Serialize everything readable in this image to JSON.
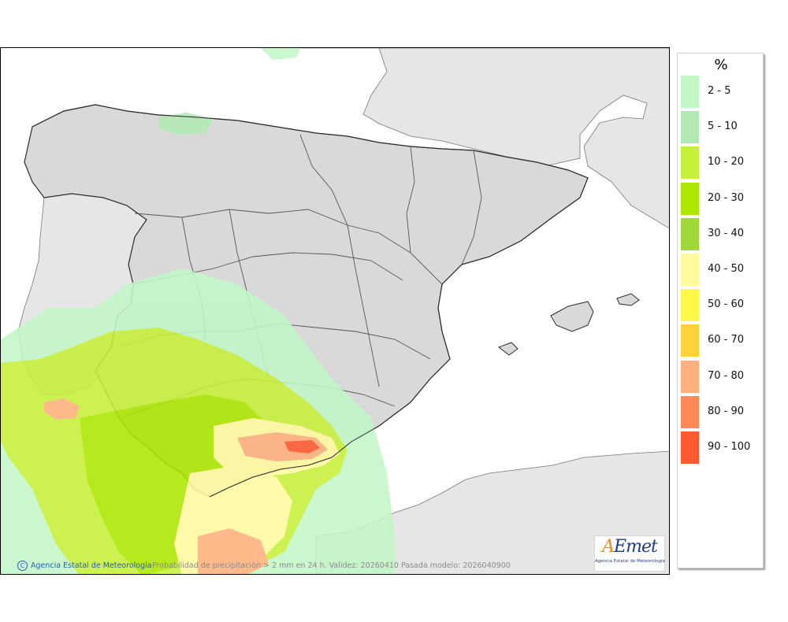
{
  "legend": {
    "unit": "%",
    "items": [
      {
        "label": "2 - 5",
        "color": "#c3f7c7"
      },
      {
        "label": "5 - 10",
        "color": "#b2e8b4"
      },
      {
        "label": "10 - 20",
        "color": "#c7f03a"
      },
      {
        "label": "20 - 30",
        "color": "#ade600"
      },
      {
        "label": "30 - 40",
        "color": "#a0d83a"
      },
      {
        "label": "40 - 50",
        "color": "#fffa9e"
      },
      {
        "label": "50 - 60",
        "color": "#fff94a"
      },
      {
        "label": "60 - 70",
        "color": "#ffd23a"
      },
      {
        "label": "70 - 80",
        "color": "#ffb07c"
      },
      {
        "label": "80 - 90",
        "color": "#ff8a58"
      },
      {
        "label": "90 - 100",
        "color": "#ff5a30"
      }
    ]
  },
  "footer": {
    "credit": "Agencia Estatal de Meteorología",
    "copyright_symbol": "C",
    "caption": "Probabilidad de precipitación > 2 mm en 24 h. Validez: 20260410 Pasada modelo: 2026040900"
  },
  "logo": {
    "text_a": "A",
    "text_rest": "Emet",
    "subtitle": "Agencia Estatal de Meteorología"
  },
  "colors": {
    "sea": "#ffffff",
    "foreign_land": "#e6e6e6",
    "spain_land": "#d9d9d9",
    "border": "#2b2b2b"
  }
}
